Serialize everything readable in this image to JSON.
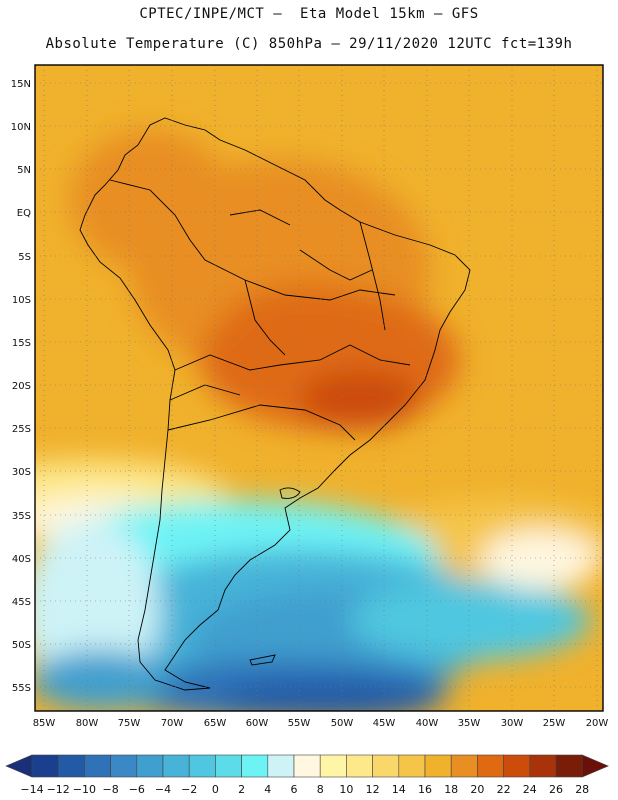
{
  "header": {
    "line1": "CPTEC/INPE/MCT –  Eta Model 15km – GFS",
    "line2": "Absolute Temperature (C) 850hPa – 29/11/2020 12UTC fct=139h"
  },
  "axes": {
    "lat_labels": [
      "15N",
      "10N",
      "5N",
      "EQ",
      "5S",
      "10S",
      "15S",
      "20S",
      "25S",
      "30S",
      "35S",
      "40S",
      "45S",
      "50S",
      "55S"
    ],
    "lon_labels": [
      "85W",
      "80W",
      "75W",
      "70W",
      "65W",
      "60W",
      "55W",
      "50W",
      "45W",
      "40W",
      "35W",
      "30W",
      "25W",
      "20W"
    ]
  },
  "colorbar": {
    "labels": [
      "-14",
      "-12",
      "-10",
      "-8",
      "-6",
      "-4",
      "-2",
      "0",
      "2",
      "4",
      "6",
      "8",
      "10",
      "12",
      "14",
      "16",
      "18",
      "20",
      "22",
      "24",
      "26",
      "28"
    ],
    "colors": [
      "#1a3f8f",
      "#235aa6",
      "#2f72b8",
      "#3a88c6",
      "#3f9fcf",
      "#47b3d8",
      "#4fc7e0",
      "#5cdbe8",
      "#6ef3f5",
      "#cdf3f7",
      "#fff7e0",
      "#fff5a6",
      "#fde88a",
      "#f9d76a",
      "#f5c54a",
      "#f0b12c",
      "#e88e22",
      "#df6a12",
      "#cc4c0c",
      "#a8320a",
      "#7a1d08"
    ],
    "under_color": "#1a2f7a",
    "over_color": "#6b1008"
  }
}
